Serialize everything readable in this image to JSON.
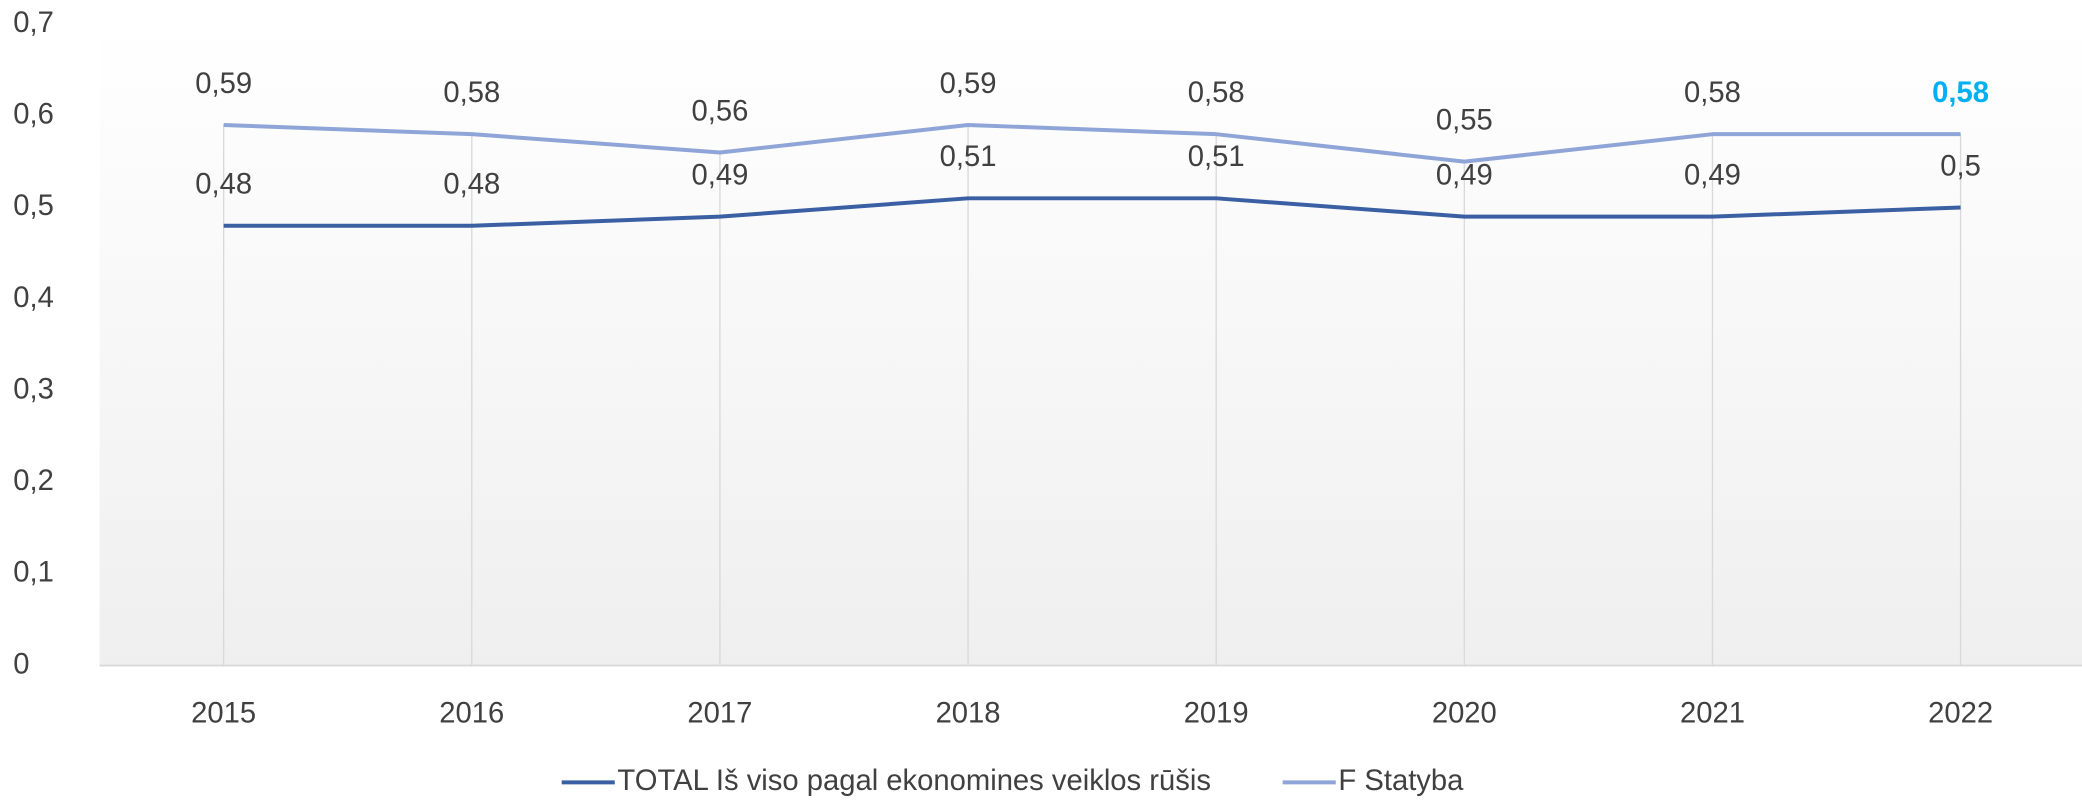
{
  "chart_data": {
    "type": "line",
    "categories": [
      "2015",
      "2016",
      "2017",
      "2018",
      "2019",
      "2020",
      "2021",
      "2022"
    ],
    "series": [
      {
        "name": "TOTAL Iš viso pagal ekonomines veiklos rūšis",
        "color": "#3b5fa3",
        "values": [
          0.48,
          0.48,
          0.49,
          0.51,
          0.51,
          0.49,
          0.49,
          0.5
        ],
        "value_labels": [
          "0,48",
          "0,48",
          "0,49",
          "0,51",
          "0,51",
          "0,49",
          "0,49",
          "0,5"
        ]
      },
      {
        "name": "F Statyba",
        "color": "#8fa5d8",
        "values": [
          0.59,
          0.58,
          0.56,
          0.59,
          0.58,
          0.55,
          0.58,
          0.58
        ],
        "value_labels": [
          "0,59",
          "0,58",
          "0,56",
          "0,59",
          "0,58",
          "0,55",
          "0,58",
          "0,58"
        ]
      }
    ],
    "ylim": [
      0,
      0.7
    ],
    "yticks": [
      0,
      {
        "value": 0.1,
        "label": "0,1"
      },
      {
        "value": 0.2,
        "label": "0,2"
      },
      {
        "value": 0.3,
        "label": "0,3"
      },
      {
        "value": 0.4,
        "label": "0,4"
      },
      {
        "value": 0.5,
        "label": "0,5"
      },
      {
        "value": 0.6,
        "label": "0,6"
      },
      {
        "value": 0.7,
        "label": "0,7"
      }
    ],
    "highlight": {
      "series": 1,
      "index": 7,
      "color": "#00b0f0"
    },
    "legend": "bottom"
  }
}
